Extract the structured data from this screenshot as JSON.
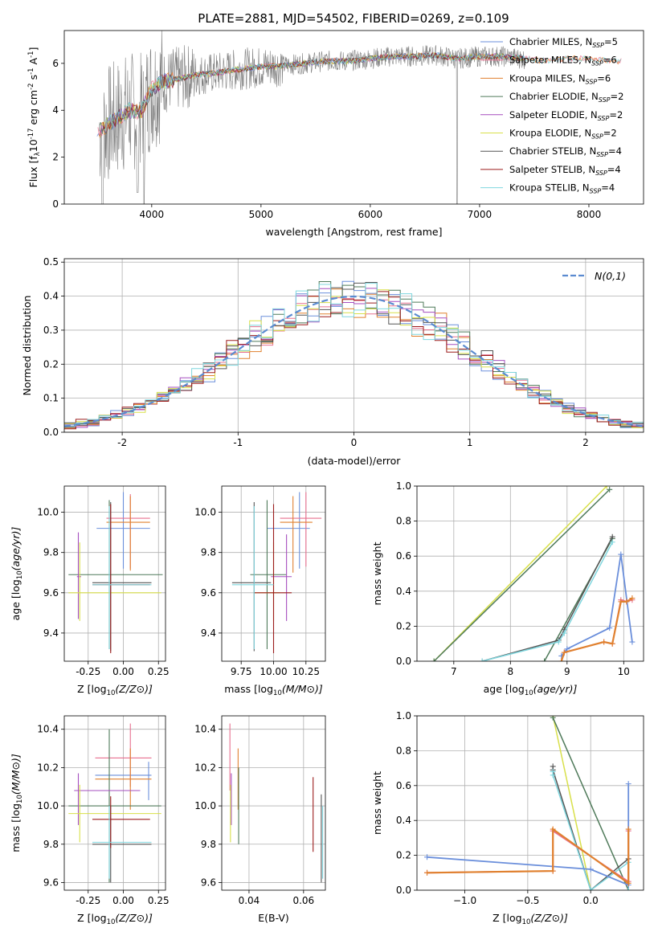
{
  "title": "PLATE=2881, MJD=54502, FIBERID=0269, z=0.109",
  "colors": {
    "Chabrier MILES": "#6b8fdb",
    "Salpeter MILES": "#e8708f",
    "Kroupa MILES": "#e0812f",
    "Chabrier ELODIE": "#4f7a5a",
    "Salpeter ELODIE": "#a64fbf",
    "Kroupa ELODIE": "#d8e04a",
    "Chabrier STELIB": "#555555",
    "Salpeter STELIB": "#9b1c1c",
    "Kroupa STELIB": "#7fd6de",
    "data": "#808080",
    "gaussian": "#5b8bd0"
  },
  "chart_data": [
    {
      "type": "line",
      "id": "spectrum",
      "title": "PLATE=2881, MJD=54502, FIBERID=0269, z=0.109",
      "xlabel": "wavelength [Angstrom, rest frame]",
      "ylabel_parts": [
        "Flux [f",
        "λ",
        "10",
        "-17",
        " erg cm",
        "-2",
        " s",
        "-1",
        " A",
        "-1",
        "]"
      ],
      "xlim": [
        3200,
        8500
      ],
      "ylim": [
        0,
        7.4
      ],
      "xticks": [
        4000,
        5000,
        6000,
        7000,
        8000
      ],
      "yticks": [
        0,
        2,
        4,
        6
      ],
      "grid": false,
      "legend_position": "right",
      "legend": [
        {
          "name": "Chabrier MILES",
          "nssp": "5"
        },
        {
          "name": "Salpeter MILES",
          "nssp": "6"
        },
        {
          "name": "Kroupa MILES",
          "nssp": "6"
        },
        {
          "name": "Chabrier ELODIE",
          "nssp": "2"
        },
        {
          "name": "Salpeter ELODIE",
          "nssp": "2"
        },
        {
          "name": "Kroupa ELODIE",
          "nssp": "2"
        },
        {
          "name": "Chabrier STELIB",
          "nssp": "4"
        },
        {
          "name": "Salpeter STELIB",
          "nssp": "4"
        },
        {
          "name": "Kroupa STELIB",
          "nssp": "4"
        }
      ],
      "nssp_prefix": "N",
      "nssp_sub": "SSP",
      "continuum": {
        "x": [
          3500,
          3600,
          3700,
          3800,
          3900,
          4000,
          4100,
          4200,
          4400,
          4600,
          4800,
          5000,
          5200,
          5400,
          5600,
          5800,
          6000,
          6200,
          6400,
          6600,
          6800,
          7000,
          7200,
          7400,
          7600,
          7800,
          8000,
          8200
        ],
        "y": [
          3.1,
          3.4,
          3.7,
          4.0,
          3.9,
          4.9,
          5.2,
          5.3,
          5.5,
          5.6,
          5.75,
          5.85,
          5.9,
          6.0,
          6.1,
          6.1,
          6.2,
          6.3,
          6.3,
          6.35,
          6.2,
          6.3,
          6.3,
          6.2,
          6.1,
          6.2,
          6.2,
          6.1
        ]
      },
      "models_end": [
        7450,
        8300,
        8300,
        7400,
        7400,
        7400,
        7400,
        7400,
        8300
      ]
    },
    {
      "type": "histogram",
      "id": "residuals",
      "xlabel": "(data-model)/error",
      "ylabel": "Normed distribution",
      "xlim": [
        -2.5,
        2.5
      ],
      "ylim": [
        0,
        0.51
      ],
      "xticks": [
        -2,
        -1,
        0,
        1,
        2
      ],
      "yticks": [
        0.0,
        0.1,
        0.2,
        0.3,
        0.4,
        0.5
      ],
      "grid": true,
      "legend_position": "top-right",
      "legend_label": "N(0,1)",
      "bin_width": 0.1
    },
    {
      "type": "errorbar",
      "id": "age-vs-Z",
      "xlabel_main": "Z [log",
      "xlabel_sub": "10",
      "xlabel_rest": "(Z/Z⊙)]",
      "ylabel_main": "age  [log",
      "ylabel_sub": "10",
      "ylabel_rest": "(age/yr)]",
      "xlim": [
        -0.42,
        0.3
      ],
      "ylim": [
        9.26,
        10.13
      ],
      "xticks": [
        -0.25,
        0.0,
        0.25
      ],
      "yticks": [
        9.4,
        9.6,
        9.8,
        10.0
      ],
      "points": [
        {
          "m": "Chabrier MILES",
          "x": 0.0,
          "y": 9.92,
          "xe": [
            -0.19,
            0.19
          ],
          "ye": [
            9.72,
            10.1
          ]
        },
        {
          "m": "Salpeter MILES",
          "x": 0.05,
          "y": 9.97,
          "xe": [
            -0.12,
            0.19
          ],
          "ye": [
            9.72,
            10.09
          ]
        },
        {
          "m": "Kroupa MILES",
          "x": 0.05,
          "y": 9.95,
          "xe": [
            -0.12,
            0.19
          ],
          "ye": [
            9.71,
            10.08
          ]
        },
        {
          "m": "Chabrier ELODIE",
          "x": -0.1,
          "y": 9.69,
          "xe": [
            -0.39,
            0.28
          ],
          "ye": [
            9.32,
            10.06
          ]
        },
        {
          "m": "Salpeter ELODIE",
          "x": -0.32,
          "y": 9.68,
          "xe": [
            -0.33,
            -0.3
          ],
          "ye": [
            9.47,
            9.9
          ]
        },
        {
          "m": "Kroupa ELODIE",
          "x": -0.31,
          "y": 9.6,
          "xe": [
            -0.39,
            0.27
          ],
          "ye": [
            9.46,
            9.85
          ]
        },
        {
          "m": "Chabrier STELIB",
          "x": -0.09,
          "y": 9.65,
          "xe": [
            -0.22,
            0.2
          ],
          "ye": [
            9.31,
            10.05
          ]
        },
        {
          "m": "Salpeter STELIB",
          "x": -0.09,
          "y": 9.64,
          "xe": [
            -0.22,
            0.19
          ],
          "ye": [
            9.3,
            10.04
          ]
        },
        {
          "m": "Kroupa STELIB",
          "x": -0.1,
          "y": 9.64,
          "xe": [
            -0.22,
            0.2
          ],
          "ye": [
            9.32,
            10.03
          ]
        }
      ]
    },
    {
      "type": "errorbar",
      "id": "age-vs-mass",
      "xlabel_main": "mass [log",
      "xlabel_sub": "10",
      "xlabel_rest": "(M/M⊙)]",
      "xlim": [
        9.6,
        10.4
      ],
      "ylim": [
        9.26,
        10.13
      ],
      "xticks": [
        9.75,
        10.0,
        10.25
      ],
      "yticks": [
        9.4,
        9.6,
        9.8,
        10.0
      ],
      "points": [
        {
          "m": "Chabrier MILES",
          "x": 10.2,
          "y": 9.92,
          "xe": [
            9.95,
            10.28
          ],
          "ye": [
            9.72,
            10.1
          ]
        },
        {
          "m": "Salpeter MILES",
          "x": 10.25,
          "y": 9.97,
          "xe": [
            10.05,
            10.37
          ],
          "ye": [
            9.73,
            10.1
          ]
        },
        {
          "m": "Kroupa MILES",
          "x": 10.15,
          "y": 9.95,
          "xe": [
            10.05,
            10.3
          ],
          "ye": [
            9.7,
            10.08
          ]
        },
        {
          "m": "Chabrier ELODIE",
          "x": 9.95,
          "y": 9.69,
          "xe": [
            9.82,
            10.1
          ],
          "ye": [
            9.32,
            10.06
          ]
        },
        {
          "m": "Salpeter ELODIE",
          "x": 10.1,
          "y": 9.68,
          "xe": [
            9.98,
            10.14
          ],
          "ye": [
            9.46,
            9.89
          ]
        },
        {
          "m": "Kroupa ELODIE",
          "x": 10.0,
          "y": 9.6,
          "xe": [
            9.85,
            10.05
          ],
          "ye": [
            9.46,
            9.85
          ]
        },
        {
          "m": "Chabrier STELIB",
          "x": 9.85,
          "y": 9.65,
          "xe": [
            9.68,
            9.98
          ],
          "ye": [
            9.31,
            10.05
          ]
        },
        {
          "m": "Salpeter STELIB",
          "x": 10.0,
          "y": 9.6,
          "xe": [
            9.85,
            10.14
          ],
          "ye": [
            9.3,
            10.04
          ]
        },
        {
          "m": "Kroupa STELIB",
          "x": 9.85,
          "y": 9.64,
          "xe": [
            9.68,
            10.0
          ],
          "ye": [
            9.32,
            10.03
          ]
        }
      ]
    },
    {
      "type": "line",
      "id": "mass-weight-vs-age",
      "xlabel_main": "age  [log",
      "xlabel_sub": "10",
      "xlabel_rest": "(age/yr)]",
      "ylabel": "mass weight",
      "xlim": [
        6.35,
        10.35
      ],
      "ylim": [
        0,
        1.0
      ],
      "xticks": [
        7,
        8,
        9,
        10
      ],
      "yticks": [
        0.0,
        0.2,
        0.4,
        0.6,
        0.8,
        1.0
      ],
      "series": [
        {
          "m": "Kroupa ELODIE",
          "x": [
            6.65,
            9.7
          ],
          "y": [
            0.0,
            1.0
          ],
          "width": 1.5
        },
        {
          "m": "Chabrier ELODIE",
          "x": [
            6.65,
            9.75
          ],
          "y": [
            0.0,
            0.98
          ],
          "width": 1.5
        },
        {
          "m": "Chabrier ELODIE",
          "x": [
            8.6,
            9.8
          ],
          "y": [
            0.0,
            0.7
          ],
          "width": 1.5
        },
        {
          "m": "Chabrier STELIB",
          "x": [
            7.5,
            8.85,
            8.95,
            9.8
          ],
          "y": [
            0.0,
            0.12,
            0.18,
            0.71
          ],
          "width": 1.5
        },
        {
          "m": "Kroupa STELIB",
          "x": [
            7.5,
            8.85,
            8.95,
            9.8
          ],
          "y": [
            0.0,
            0.11,
            0.16,
            0.68
          ],
          "width": 1.5
        },
        {
          "m": "Chabrier MILES",
          "x": [
            8.9,
            9.0,
            9.75,
            9.95,
            10.15
          ],
          "y": [
            0.03,
            0.07,
            0.19,
            0.61,
            0.11
          ],
          "width": 1.8
        },
        {
          "m": "Salpeter MILES",
          "x": [
            8.9,
            8.95,
            9.65,
            9.8,
            9.95,
            10.05,
            10.15
          ],
          "y": [
            0.0,
            0.05,
            0.11,
            0.1,
            0.35,
            0.34,
            0.35
          ],
          "width": 1.8
        },
        {
          "m": "Kroupa MILES",
          "x": [
            8.9,
            8.95,
            9.65,
            9.8,
            9.95,
            10.05,
            10.15
          ],
          "y": [
            0.0,
            0.05,
            0.11,
            0.1,
            0.34,
            0.34,
            0.36
          ],
          "width": 2.2
        }
      ]
    },
    {
      "type": "errorbar",
      "id": "mass-vs-Z",
      "xlabel_main": "Z [log",
      "xlabel_sub": "10",
      "xlabel_rest": "(Z/Z⊙)]",
      "ylabel_main": "mass [log",
      "ylabel_sub": "10",
      "ylabel_rest": "(M/M⊙)]",
      "xlim": [
        -0.42,
        0.3
      ],
      "ylim": [
        9.56,
        10.47
      ],
      "xticks": [
        -0.25,
        0.0,
        0.25
      ],
      "yticks": [
        9.6,
        9.8,
        10.0,
        10.2,
        10.4
      ],
      "points": [
        {
          "m": "Chabrier MILES",
          "x": 0.18,
          "y": 10.16,
          "xe": [
            -0.2,
            0.2
          ],
          "ye": [
            10.03,
            10.23
          ]
        },
        {
          "m": "Salpeter MILES",
          "x": 0.05,
          "y": 10.25,
          "xe": [
            -0.2,
            0.2
          ],
          "ye": [
            10.1,
            10.43
          ]
        },
        {
          "m": "Kroupa MILES",
          "x": 0.05,
          "y": 10.14,
          "xe": [
            -0.2,
            0.2
          ],
          "ye": [
            9.98,
            10.3
          ]
        },
        {
          "m": "Chabrier ELODIE",
          "x": -0.1,
          "y": 10.0,
          "xe": [
            -0.39,
            0.27
          ],
          "ye": [
            9.6,
            10.4
          ]
        },
        {
          "m": "Salpeter ELODIE",
          "x": -0.32,
          "y": 10.08,
          "xe": [
            -0.35,
            0.12
          ],
          "ye": [
            9.9,
            10.17
          ]
        },
        {
          "m": "Kroupa ELODIE",
          "x": -0.31,
          "y": 9.96,
          "xe": [
            -0.39,
            0.27
          ],
          "ye": [
            9.81,
            10.11
          ]
        },
        {
          "m": "Chabrier STELIB",
          "x": -0.09,
          "y": 9.8,
          "xe": [
            -0.22,
            0.2
          ],
          "ye": [
            9.6,
            10.0
          ]
        },
        {
          "m": "Salpeter STELIB",
          "x": -0.09,
          "y": 9.93,
          "xe": [
            -0.22,
            0.19
          ],
          "ye": [
            9.78,
            10.05
          ]
        },
        {
          "m": "Kroupa STELIB",
          "x": -0.1,
          "y": 9.81,
          "xe": [
            -0.22,
            0.2
          ],
          "ye": [
            9.62,
            10.0
          ]
        }
      ]
    },
    {
      "type": "errorbar",
      "id": "mass-vs-ebv",
      "xlabel": "E(B-V)",
      "xlim": [
        0.03,
        0.068
      ],
      "ylim": [
        9.56,
        10.47
      ],
      "xticks": [
        0.04,
        0.06
      ],
      "yticks": [
        9.6,
        9.8,
        10.0,
        10.2,
        10.4
      ],
      "points": [
        {
          "m": "Salpeter MILES",
          "x": 0.033,
          "y": 10.25,
          "ye": [
            10.08,
            10.43
          ]
        },
        {
          "m": "Kroupa MILES",
          "x": 0.036,
          "y": 10.14,
          "ye": [
            9.98,
            10.3
          ]
        },
        {
          "m": "Salpeter ELODIE",
          "x": 0.0335,
          "y": 10.08,
          "ye": [
            9.9,
            10.17
          ]
        },
        {
          "m": "Kroupa ELODIE",
          "x": 0.0332,
          "y": 9.96,
          "ye": [
            9.81,
            10.11
          ]
        },
        {
          "m": "Chabrier ELODIE",
          "x": 0.0362,
          "y": 10.0,
          "ye": [
            9.8,
            10.2
          ]
        },
        {
          "m": "Salpeter STELIB",
          "x": 0.0635,
          "y": 9.93,
          "ye": [
            9.76,
            10.15
          ]
        },
        {
          "m": "Chabrier STELIB",
          "x": 0.0665,
          "y": 9.8,
          "ye": [
            9.6,
            10.06
          ]
        },
        {
          "m": "Kroupa STELIB",
          "x": 0.067,
          "y": 9.81,
          "ye": [
            9.62,
            10.0
          ]
        }
      ]
    },
    {
      "type": "line",
      "id": "mass-weight-vs-Z",
      "xlabel_main": "Z [log",
      "xlabel_sub": "10",
      "xlabel_rest": "(Z/Z⊙)]",
      "ylabel": "mass weight",
      "xlim": [
        -1.38,
        0.42
      ],
      "ylim": [
        0,
        1.0
      ],
      "xticks": [
        -1.0,
        -0.5,
        0.0
      ],
      "yticks": [
        0.0,
        0.2,
        0.4,
        0.6,
        0.8,
        1.0
      ],
      "series": [
        {
          "m": "Kroupa ELODIE",
          "x": [
            -0.3,
            0.0
          ],
          "y": [
            1.0,
            0.0
          ],
          "width": 1.5
        },
        {
          "m": "Chabrier ELODIE",
          "x": [
            -0.3,
            0.3
          ],
          "y": [
            0.99,
            0.0
          ],
          "width": 1.5
        },
        {
          "m": "Chabrier STELIB",
          "x": [
            -0.3,
            -0.3,
            0.0,
            0.3,
            0.3
          ],
          "y": [
            0.71,
            0.69,
            0.0,
            0.18,
            0.0
          ],
          "width": 1.5
        },
        {
          "m": "Kroupa STELIB",
          "x": [
            -0.3,
            -0.3,
            0.0,
            0.3,
            0.3
          ],
          "y": [
            0.68,
            0.66,
            0.0,
            0.16,
            0.0
          ],
          "width": 1.5
        },
        {
          "m": "Chabrier MILES",
          "x": [
            -1.3,
            0.0,
            0.3,
            0.3
          ],
          "y": [
            0.19,
            0.12,
            0.03,
            0.61
          ],
          "width": 1.8
        },
        {
          "m": "Salpeter MILES",
          "x": [
            -1.3,
            -0.3,
            -0.3,
            0.3,
            0.3
          ],
          "y": [
            0.1,
            0.11,
            0.34,
            0.05,
            0.34
          ],
          "width": 1.8
        },
        {
          "m": "Kroupa MILES",
          "x": [
            -1.3,
            -0.3,
            -0.3,
            0.3,
            0.3
          ],
          "y": [
            0.1,
            0.11,
            0.35,
            0.04,
            0.35
          ],
          "width": 2.2
        }
      ]
    }
  ]
}
